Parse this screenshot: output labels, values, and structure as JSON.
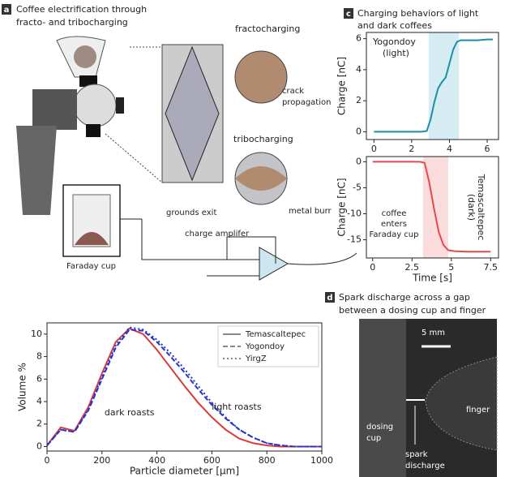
{
  "chart_data": [
    {
      "type": "line",
      "panel": "c",
      "title": [
        "Charging behaviors of light",
        "and dark coffees"
      ],
      "ylabel": "Charge [nC]",
      "xlim": [
        -0.4,
        6.6
      ],
      "xticks": [
        0,
        2,
        4,
        6
      ],
      "ylim": [
        -0.5,
        6.4
      ],
      "yticks": [
        0,
        2,
        4,
        6
      ],
      "shade_x": [
        2.9,
        4.5
      ],
      "shade_color": "#d5ecf3",
      "annotation": "(light)",
      "series": [
        {
          "name": "Yogondoy",
          "color": "#1b8fa8",
          "dash": "solid",
          "x": [
            0,
            0.5,
            1,
            1.5,
            2,
            2.5,
            2.8,
            3.0,
            3.2,
            3.4,
            3.6,
            3.8,
            4.0,
            4.2,
            4.4,
            4.6,
            5,
            5.5,
            6,
            6.3
          ],
          "values": [
            0,
            0,
            0,
            0,
            0,
            0,
            0.05,
            0.8,
            1.9,
            2.8,
            3.2,
            3.5,
            4.4,
            5.3,
            5.8,
            5.9,
            5.9,
            5.9,
            5.95,
            5.95
          ]
        }
      ]
    },
    {
      "type": "line",
      "ylabel": "Charge [nC]",
      "xlabel": "Time [s]",
      "xlim": [
        -0.4,
        8
      ],
      "xticks": [
        0,
        2.5,
        5,
        7.5
      ],
      "ylim": [
        -18.5,
        1
      ],
      "yticks": [
        0,
        -5,
        -10,
        -15
      ],
      "shade_x": [
        3.2,
        4.8
      ],
      "shade_color": "#fbdcdc",
      "annotation": "(dark)",
      "note": [
        "coffee",
        "enters",
        "Faraday cup"
      ],
      "series": [
        {
          "name": "Temascaltepec",
          "color": "#e5484d",
          "dash": "solid",
          "x": [
            0,
            1,
            2,
            3,
            3.3,
            3.6,
            3.9,
            4.2,
            4.5,
            4.8,
            5.2,
            6,
            7,
            7.5
          ],
          "values": [
            0,
            0,
            0,
            0,
            -0.2,
            -4,
            -9,
            -13.5,
            -16,
            -17,
            -17.2,
            -17.3,
            -17.3,
            -17.3
          ]
        }
      ]
    },
    {
      "type": "line",
      "xlabel": "Particle diameter [µm]",
      "ylabel": "Volume %",
      "xlim": [
        0,
        1000
      ],
      "xticks": [
        0,
        200,
        400,
        600,
        800,
        1000
      ],
      "ylim": [
        -0.4,
        11
      ],
      "yticks": [
        0,
        2,
        4,
        6,
        8,
        10
      ],
      "legend_color": "#888888",
      "annotations": [
        "dark roasts",
        "light roasts"
      ],
      "x": [
        0,
        50,
        100,
        150,
        200,
        250,
        300,
        350,
        400,
        450,
        500,
        550,
        600,
        650,
        700,
        750,
        800,
        850,
        900,
        950,
        1000
      ],
      "series": [
        {
          "name": "Temascaltepec",
          "color": "#d93a3a",
          "dash": "solid",
          "values": [
            0.1,
            1.7,
            1.4,
            3.5,
            6.5,
            9.3,
            10.5,
            10.0,
            8.6,
            7.0,
            5.4,
            3.9,
            2.6,
            1.5,
            0.7,
            0.3,
            0.1,
            0,
            0,
            0,
            0
          ]
        },
        {
          "name": "Yogondoy",
          "color": "#2233cc",
          "dash": "dashed",
          "values": [
            0.1,
            1.5,
            1.3,
            3.2,
            6.0,
            8.8,
            10.4,
            10.3,
            9.3,
            8.0,
            6.6,
            5.1,
            3.7,
            2.5,
            1.5,
            0.8,
            0.3,
            0.1,
            0,
            0,
            0
          ]
        },
        {
          "name": "YirgZ",
          "color": "#2233cc",
          "dash": "dotted",
          "values": [
            0.1,
            1.5,
            1.3,
            3.3,
            6.2,
            9.0,
            10.6,
            10.4,
            9.5,
            8.3,
            6.9,
            5.4,
            3.9,
            2.6,
            1.5,
            0.8,
            0.3,
            0.1,
            0,
            0,
            0
          ]
        }
      ]
    }
  ],
  "diagram": {
    "panel": "a",
    "title": [
      "Coffee electrification through",
      "fracto- and tribocharging"
    ],
    "fracto": "fractocharging",
    "crack": [
      "crack",
      "propagation"
    ],
    "tribo": "tribocharging",
    "burr": "metal burr",
    "exit": "grounds exit",
    "cup": "Faraday cup",
    "amp": "charge amplifer"
  },
  "photo": {
    "panel": "d",
    "title": [
      "Spark discharge across a gap",
      "between a dosing cup and finger"
    ],
    "scale": "5 mm",
    "dosing": [
      "dosing",
      "cup"
    ],
    "spark": [
      "spark",
      "discharge"
    ],
    "finger": "finger"
  }
}
